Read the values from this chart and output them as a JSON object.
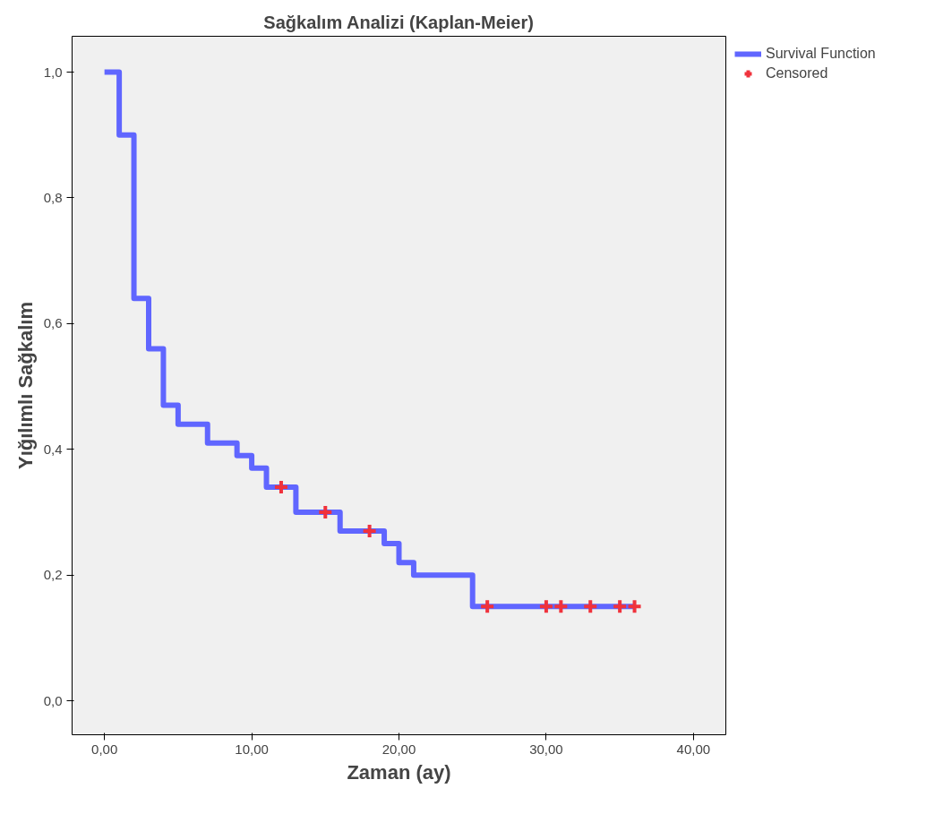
{
  "chart_data": {
    "type": "step",
    "title": "Sağkalım Analizi (Kaplan-Meier)",
    "xlabel": "Zaman (ay)",
    "ylabel": "Yığılımlı Sağkalım",
    "series": [
      {
        "name": "Survival Function",
        "color": "#6066ff",
        "x": [
          0,
          1,
          2,
          3,
          4,
          5,
          7,
          9,
          10,
          11,
          13,
          16,
          19,
          20,
          21,
          25,
          36
        ],
        "values": [
          1.0,
          0.9,
          0.64,
          0.56,
          0.47,
          0.44,
          0.41,
          0.39,
          0.37,
          0.34,
          0.3,
          0.27,
          0.25,
          0.22,
          0.2,
          0.15,
          0.15
        ]
      },
      {
        "name": "Censored",
        "type": "scatter",
        "marker": "cross",
        "color": "#f0323c",
        "x": [
          12,
          15,
          18,
          26,
          30,
          31,
          33,
          35,
          36
        ],
        "values": [
          0.34,
          0.3,
          0.27,
          0.15,
          0.15,
          0.15,
          0.15,
          0.15,
          0.15
        ]
      }
    ],
    "xlim": [
      -2.2,
      42.2
    ],
    "ylim": [
      -0.054,
      1.057
    ],
    "xticks": [
      {
        "value": 0,
        "label": "0,00"
      },
      {
        "value": 10,
        "label": "10,00"
      },
      {
        "value": 20,
        "label": "20,00"
      },
      {
        "value": 30,
        "label": "30,00"
      },
      {
        "value": 40,
        "label": "40,00"
      }
    ],
    "yticks": [
      {
        "value": 0,
        "label": "0,0"
      },
      {
        "value": 0.2,
        "label": "0,2"
      },
      {
        "value": 0.4,
        "label": "0,4"
      },
      {
        "value": 0.6,
        "label": "0,6"
      },
      {
        "value": 0.8,
        "label": "0,8"
      },
      {
        "value": 1.0,
        "label": "1,0"
      }
    ],
    "grid": false,
    "legend": "top right"
  }
}
